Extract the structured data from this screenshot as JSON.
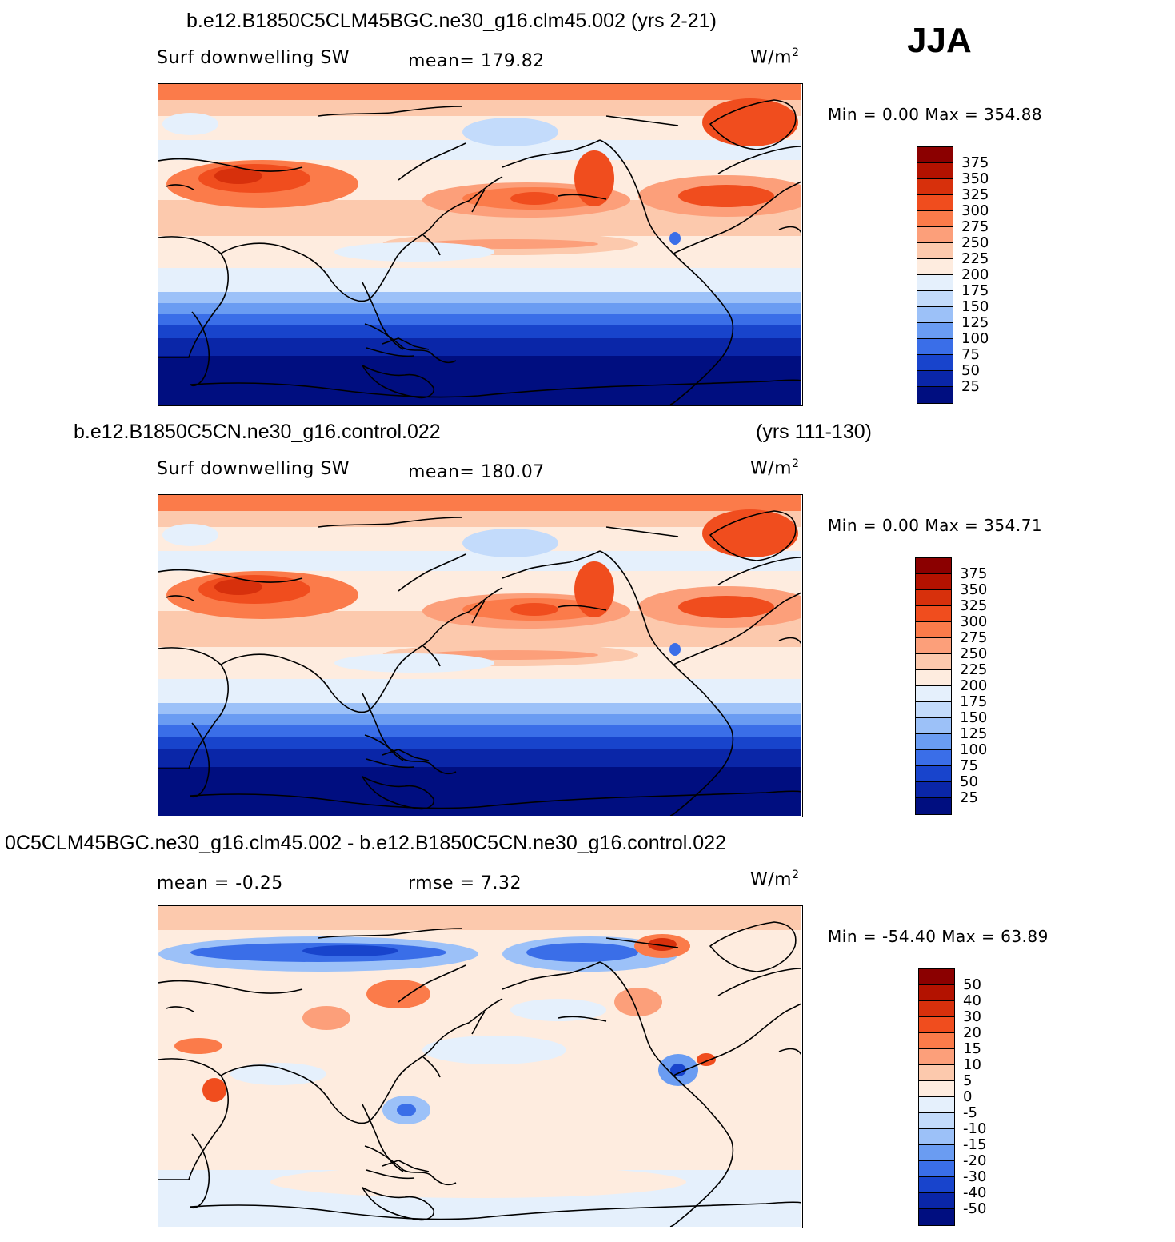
{
  "season": "JJA",
  "panels": [
    {
      "title": "b.e12.B1850C5CLM45BGC.ne30_g16.clm45.002 (yrs 2-21)",
      "subtitle_right": "",
      "left_label": "Surf downwelling SW",
      "center_label": "mean= 179.82",
      "units_base": "W/m",
      "units_exp": "2",
      "minmax": "Min =    0.00  Max  =  354.88",
      "kind": "abs",
      "colorbar_labels": [
        "375",
        "350",
        "325",
        "300",
        "275",
        "250",
        "225",
        "200",
        "175",
        "150",
        "125",
        "100",
        "75",
        "50",
        "25"
      ],
      "colorbar_colors": [
        "#8b0000",
        "#b31200",
        "#d7300c",
        "#f04d1e",
        "#fb7b4a",
        "#fc9f7a",
        "#fcc9ad",
        "#feecdf",
        "#e5f0fc",
        "#c3dbfb",
        "#9cc1f8",
        "#6a9cf2",
        "#3a6ee8",
        "#1844cc",
        "#0a26a8",
        "#000e80"
      ]
    },
    {
      "title": "b.e12.B1850C5CN.ne30_g16.control.022",
      "subtitle_right": "(yrs 111-130)",
      "left_label": "Surf downwelling SW",
      "center_label": "mean= 180.07",
      "units_base": "W/m",
      "units_exp": "2",
      "minmax": "Min =    0.00  Max  =  354.71",
      "kind": "abs",
      "colorbar_labels": [
        "375",
        "350",
        "325",
        "300",
        "275",
        "250",
        "225",
        "200",
        "175",
        "150",
        "125",
        "100",
        "75",
        "50",
        "25"
      ],
      "colorbar_colors": [
        "#8b0000",
        "#b31200",
        "#d7300c",
        "#f04d1e",
        "#fb7b4a",
        "#fc9f7a",
        "#fcc9ad",
        "#feecdf",
        "#e5f0fc",
        "#c3dbfb",
        "#9cc1f8",
        "#6a9cf2",
        "#3a6ee8",
        "#1844cc",
        "#0a26a8",
        "#000e80"
      ]
    },
    {
      "title": "0C5CLM45BGC.ne30_g16.clm45.002 - b.e12.B1850C5CN.ne30_g16.control.022",
      "subtitle_right": "",
      "left_label": "mean =   -0.25",
      "center_label": "rmse =     7.32",
      "units_base": "W/m",
      "units_exp": "2",
      "minmax": "Min  =  -54.40  Max  =    63.89",
      "kind": "diff",
      "colorbar_labels": [
        "50",
        "40",
        "30",
        "20",
        "15",
        "10",
        "5",
        "0",
        "-5",
        "-10",
        "-15",
        "-20",
        "-30",
        "-40",
        "-50"
      ],
      "colorbar_colors": [
        "#8b0000",
        "#b31200",
        "#d7300c",
        "#f04d1e",
        "#fb7b4a",
        "#fc9f7a",
        "#fcc9ad",
        "#feecdf",
        "#e5f0fc",
        "#c3dbfb",
        "#9cc1f8",
        "#6a9cf2",
        "#3a6ee8",
        "#1844cc",
        "#0a26a8",
        "#000e80"
      ]
    }
  ]
}
